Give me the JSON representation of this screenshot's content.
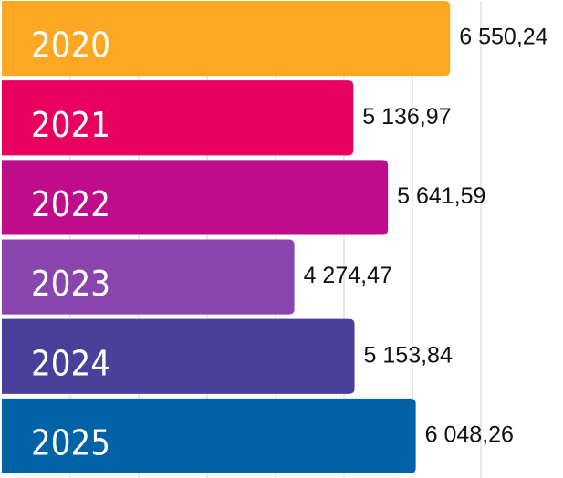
{
  "chart_data": {
    "type": "barh",
    "categories": [
      "2020",
      "2021",
      "2022",
      "2023",
      "2024",
      "2025"
    ],
    "values": [
      6550.24,
      5136.97,
      5641.59,
      4274.47,
      5153.84,
      6048.26
    ],
    "value_labels": [
      "6 550,24",
      "5 136,97",
      "5 641,59",
      "4 274,47",
      "5 153,84",
      "6 048,26"
    ],
    "colors": [
      "#fca822",
      "#e8005f",
      "#bf0c8b",
      "#8a44ad",
      "#4a3f9b",
      "#0063a6"
    ],
    "xlim": [
      0,
      8200
    ],
    "xticks": [
      1000,
      2000,
      3000,
      4000,
      5000,
      6000,
      7000
    ],
    "grid": true
  }
}
